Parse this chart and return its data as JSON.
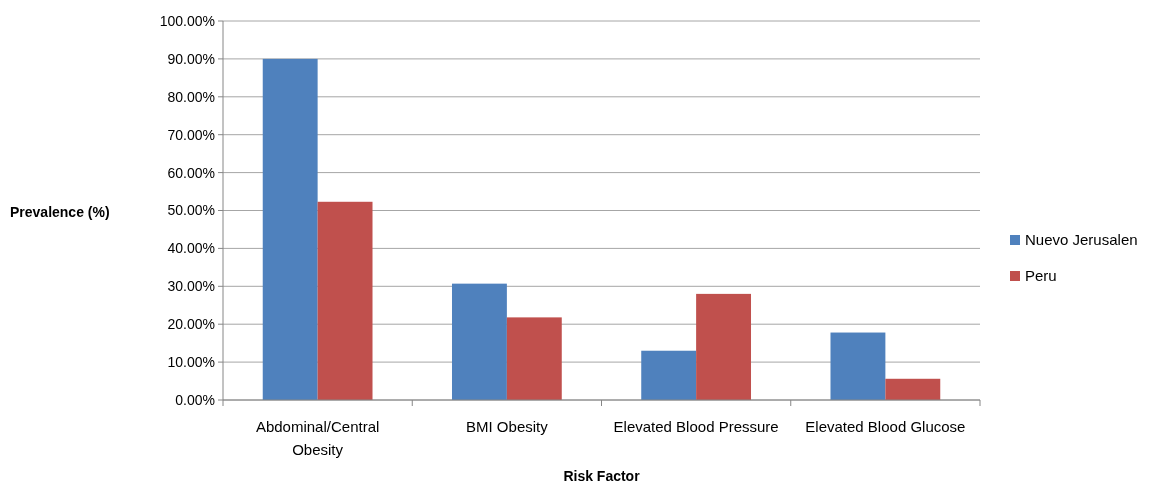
{
  "chart_data": {
    "type": "bar",
    "xlabel": "Risk Factor",
    "ylabel": "Prevalence (%)",
    "categories": [
      "Abdominal/Central Obesity",
      "BMI Obesity",
      "Elevated Blood Pressure",
      "Elevated Blood Glucose"
    ],
    "series": [
      {
        "name": "Nuevo Jerusalen",
        "color": "#4f81bd",
        "values": [
          90.0,
          30.7,
          13.0,
          17.8
        ]
      },
      {
        "name": "Peru",
        "color": "#c0504d",
        "values": [
          52.3,
          21.8,
          28.0,
          5.6
        ]
      }
    ],
    "ylim": [
      0,
      100
    ],
    "yticks": [
      {
        "value": 0,
        "label": "0.00%"
      },
      {
        "value": 10,
        "label": "10.00%"
      },
      {
        "value": 20,
        "label": "20.00%"
      },
      {
        "value": 30,
        "label": "30.00%"
      },
      {
        "value": 40,
        "label": "40.00%"
      },
      {
        "value": 50,
        "label": "50.00%"
      },
      {
        "value": 60,
        "label": "60.00%"
      },
      {
        "value": 70,
        "label": "70.00%"
      },
      {
        "value": 80,
        "label": "80.00%"
      },
      {
        "value": 90,
        "label": "90.00%"
      },
      {
        "value": 100,
        "label": "100.00%"
      }
    ],
    "grid": "y",
    "legend": "right"
  }
}
